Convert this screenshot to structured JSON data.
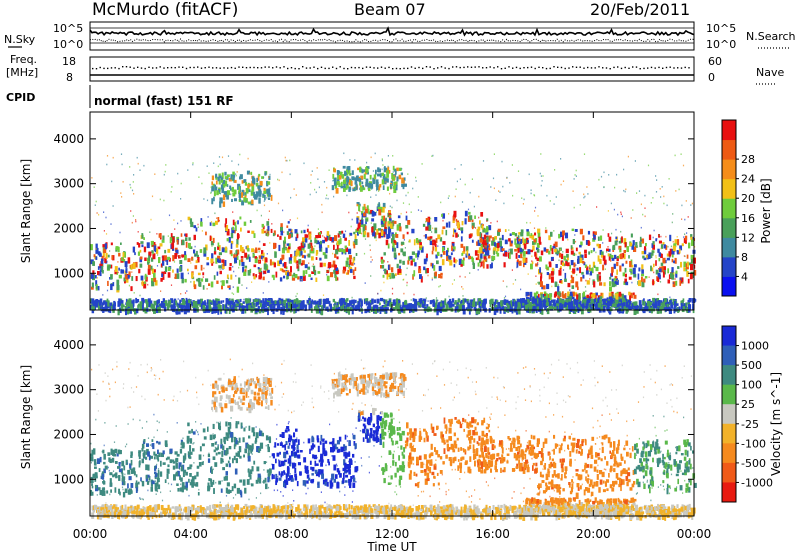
{
  "header": {
    "station": "McMurdo (fitACF)",
    "beam": "Beam 07",
    "date": "20/Feb/2011"
  },
  "top_panels": {
    "nsky_label": "N.Sky",
    "nsky_ticks": [
      "10^5",
      "10^0"
    ],
    "nsearch_label": "N.Search",
    "nsearch_ticks": [
      "10^5",
      "10^0"
    ],
    "freq_label_1": "Freq.",
    "freq_label_2": "[MHz]",
    "freq_ticks": [
      "18",
      "8"
    ],
    "nave_label": "Nave",
    "nave_ticks": [
      "60",
      "0"
    ],
    "cpid_label": "CPID",
    "cpid_text": "normal (fast) 151 RF"
  },
  "chart_data": [
    {
      "type": "heatmap",
      "panel": "power",
      "ylabel": "Slant Range [km]",
      "yticks": [
        "1000",
        "2000",
        "3000",
        "4000"
      ],
      "ylim": [
        180,
        4600
      ],
      "xlim": [
        "00:00",
        "24:00"
      ],
      "colorbar": {
        "label": "Power [dB]",
        "ticks": [
          "4",
          "8",
          "12",
          "16",
          "20",
          "24",
          "28"
        ],
        "colors": [
          "#0a10f0",
          "#2444c8",
          "#3f8aa0",
          "#49a05a",
          "#6fcc3c",
          "#f2c017",
          "#f58d1a",
          "#ee5a14",
          "#e81010"
        ]
      }
    },
    {
      "type": "heatmap",
      "panel": "velocity",
      "ylabel": "Slant Range [km]",
      "yticks": [
        "1000",
        "2000",
        "3000",
        "4000"
      ],
      "ylim": [
        180,
        4600
      ],
      "xlim": [
        "00:00",
        "24:00"
      ],
      "colorbar": {
        "label": "Velocity [m s^-1]",
        "ticks": [
          "1000",
          "500",
          "100",
          "25",
          "-25",
          "-100",
          "-500",
          "-1000"
        ],
        "colors": [
          "#1a2ad6",
          "#2f5fb8",
          "#3e8a80",
          "#5ab84a",
          "#c8c8c0",
          "#f2b22a",
          "#f58a1e",
          "#f05a18",
          "#e81a10"
        ]
      }
    }
  ],
  "xaxis": {
    "label": "Time UT",
    "ticks": [
      "00:00",
      "04:00",
      "08:00",
      "12:00",
      "16:00",
      "20:00",
      "00:00"
    ]
  }
}
